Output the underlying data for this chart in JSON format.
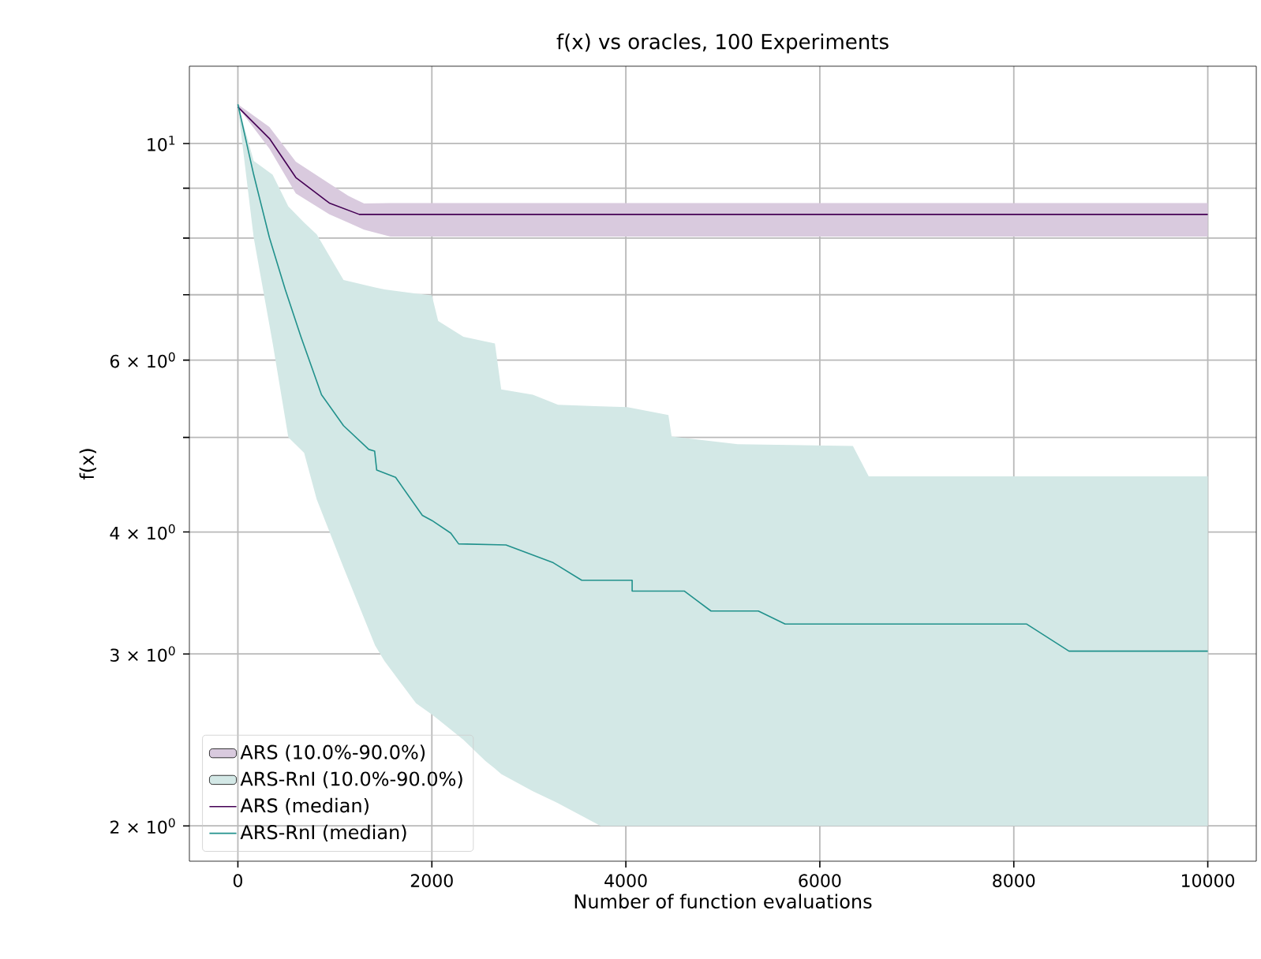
{
  "chart_data": {
    "type": "line",
    "title": "f(x) vs oracles, 100 Experiments",
    "xlabel": "Number of function evaluations",
    "ylabel": "f(x)",
    "log": "y",
    "grid": true,
    "legend": "bottom left",
    "xlim": [
      -500,
      10500
    ],
    "ylim": [
      1.84,
      12.0
    ],
    "xticks": [
      0,
      2000,
      4000,
      6000,
      8000,
      10000
    ],
    "yticks": [
      {
        "value": 2,
        "label": "2 × 10$^{0}$"
      },
      {
        "value": 3,
        "label": "3 × 10$^{0}$"
      },
      {
        "value": 4,
        "label": "4 × 10$^{0}$"
      },
      {
        "value": 5,
        "label": null
      },
      {
        "value": 6,
        "label": "6 × 10$^{0}$"
      },
      {
        "value": 7,
        "label": null
      },
      {
        "value": 8,
        "label": null
      },
      {
        "value": 9,
        "label": null
      },
      {
        "value": 10,
        "label": "10$^{1}$"
      }
    ],
    "series": [
      {
        "name": "ARS (10.0%-90.0%)",
        "type": "area",
        "color": "#d9cade",
        "x": [
          0,
          325,
          597,
          943,
          1138,
          1301,
          1572,
          10000
        ],
        "values": [
          null,
          null,
          null,
          null,
          null,
          null,
          null,
          null
        ],
        "lower": [
          10.9,
          9.88,
          8.89,
          8.46,
          8.3,
          8.16,
          8.03,
          8.03
        ],
        "upper": [
          10.97,
          10.4,
          9.58,
          9.1,
          8.84,
          8.68,
          8.69,
          8.69
        ]
      },
      {
        "name": "ARS-RnI (10.0%-90.0%)",
        "type": "area",
        "color": "#d3e8e6",
        "x": [
          0,
          163,
          358,
          520,
          683,
          813,
          1089,
          1415,
          1512,
          1837,
          2000,
          2065,
          2325,
          2553,
          2650,
          2715,
          3041,
          3301,
          3740,
          4016,
          4439,
          4472,
          5154,
          6341,
          6504,
          10000
        ],
        "values": [
          null,
          null,
          null,
          null,
          null,
          null,
          null,
          null,
          null,
          null,
          null,
          null,
          null,
          null,
          null,
          null,
          null,
          null,
          null,
          null,
          null,
          null,
          null,
          null,
          null,
          null
        ],
        "lower": [
          10.9,
          8.01,
          6.25,
          5.0,
          4.82,
          4.32,
          3.68,
          3.06,
          2.95,
          2.67,
          2.6,
          2.57,
          2.45,
          2.33,
          2.29,
          2.26,
          2.17,
          2.11,
          2.0,
          2.0,
          2.0,
          2.0,
          2.0,
          2.0,
          2.0,
          2.0
        ],
        "upper": [
          10.97,
          9.6,
          9.29,
          8.62,
          8.3,
          8.07,
          7.25,
          7.12,
          7.09,
          7.02,
          6.99,
          6.58,
          6.34,
          6.27,
          6.24,
          5.6,
          5.53,
          5.4,
          5.38,
          5.37,
          5.27,
          5.01,
          4.92,
          4.9,
          4.56,
          4.56
        ]
      },
      {
        "name": "ARS (median)",
        "color": "#440154",
        "x": [
          0,
          325,
          597,
          943,
          1252,
          10000
        ],
        "values": [
          10.9,
          10.12,
          9.23,
          8.69,
          8.46,
          8.46
        ]
      },
      {
        "name": "ARS-RnI (median)",
        "color": "#21918c",
        "x": [
          0,
          163,
          325,
          488,
          650,
          862,
          1089,
          1350,
          1410,
          1431,
          1626,
          1902,
          2000,
          2195,
          2276,
          2764,
          3252,
          3545,
          4065,
          4065,
          4602,
          4878,
          5366,
          5642,
          8130,
          8569,
          10000
        ],
        "values": [
          10.97,
          9.29,
          8.01,
          7.09,
          6.34,
          5.53,
          5.14,
          4.86,
          4.84,
          4.63,
          4.55,
          4.16,
          4.11,
          3.99,
          3.89,
          3.88,
          3.72,
          3.57,
          3.57,
          3.48,
          3.48,
          3.32,
          3.32,
          3.22,
          3.22,
          3.02,
          3.02
        ]
      }
    ]
  }
}
